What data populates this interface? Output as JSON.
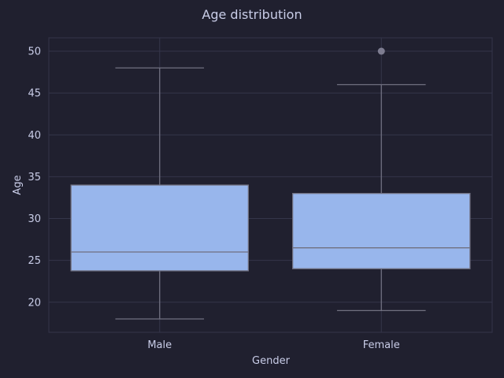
{
  "chart_data": {
    "type": "box",
    "title": "Age distribution",
    "xlabel": "Gender",
    "ylabel": "Age",
    "categories": [
      "Male",
      "Female"
    ],
    "boxes": [
      {
        "category": "Male",
        "whisker_low": 18,
        "q1": 23.75,
        "median": 26,
        "q3": 34,
        "whisker_high": 48,
        "outliers": []
      },
      {
        "category": "Female",
        "whisker_low": 19,
        "q1": 24,
        "median": 26.5,
        "q3": 33,
        "whisker_high": 46,
        "outliers": [
          50
        ]
      }
    ],
    "yticks": [
      20,
      25,
      30,
      35,
      40,
      45,
      50
    ],
    "ylim": [
      16.4,
      51.6
    ],
    "grid": true,
    "colors": {
      "background": "#20202f",
      "grid": "#34354a",
      "box_fill": "#98b6ec",
      "lines": "#707080",
      "outlier": "#7d7c90",
      "text": "#c9cde8"
    }
  }
}
